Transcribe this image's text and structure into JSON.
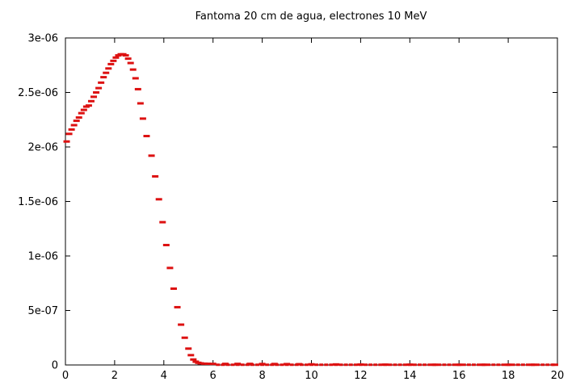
{
  "chart_data": {
    "type": "scatter",
    "title": "Fantoma 20 cm de agua, electrones 10 MeV",
    "xlabel": "",
    "ylabel": "",
    "xlim": [
      0,
      20
    ],
    "ylim": [
      0,
      3e-06
    ],
    "x_ticks": [
      0,
      2,
      4,
      6,
      8,
      10,
      12,
      14,
      16,
      18,
      20
    ],
    "x_tick_labels": [
      "0",
      "2",
      "4",
      "6",
      "8",
      "10",
      "12",
      "14",
      "16",
      "18",
      "20"
    ],
    "y_ticks": [
      0,
      5e-07,
      1e-06,
      1.5e-06,
      2e-06,
      2.5e-06,
      3e-06
    ],
    "y_tick_labels": [
      "0",
      "5e-07",
      "1e-06",
      "1.5e-06",
      "2e-06",
      "2.5e-06",
      "3e-06"
    ],
    "grid": false,
    "marker": "short horizontal dash",
    "colors": {
      "series": "#dd1111",
      "axis": "#000000",
      "background": "#ffffff"
    },
    "series": [
      {
        "x": [
          0.05,
          0.15,
          0.25,
          0.35,
          0.45,
          0.55,
          0.65,
          0.75,
          0.85,
          0.95,
          1.05,
          1.15,
          1.25,
          1.35,
          1.45,
          1.55,
          1.65,
          1.75,
          1.85,
          1.95,
          2.05,
          2.15,
          2.25,
          2.35,
          2.45,
          2.55,
          2.65,
          2.75,
          2.85,
          2.95,
          3.05,
          3.15,
          3.3,
          3.5,
          3.65,
          3.8,
          3.95,
          4.1,
          4.25,
          4.4,
          4.55,
          4.7,
          4.85,
          5.0,
          5.1,
          5.2,
          5.3,
          5.4,
          5.5,
          5.65,
          5.8,
          6.0,
          6.5,
          7.0,
          7.5,
          8.0,
          8.5,
          9.0,
          9.5,
          10.0,
          11.0,
          12.0,
          13.0,
          14.0,
          15.0,
          16.0,
          17.0,
          18.0,
          19.0,
          19.9
        ],
        "y": [
          2.05e-06,
          2.12e-06,
          2.16e-06,
          2.2e-06,
          2.24e-06,
          2.27e-06,
          2.31e-06,
          2.34e-06,
          2.37e-06,
          2.38e-06,
          2.42e-06,
          2.46e-06,
          2.5e-06,
          2.54e-06,
          2.59e-06,
          2.64e-06,
          2.68e-06,
          2.72e-06,
          2.76e-06,
          2.79e-06,
          2.82e-06,
          2.84e-06,
          2.85e-06,
          2.85e-06,
          2.84e-06,
          2.81e-06,
          2.77e-06,
          2.71e-06,
          2.63e-06,
          2.53e-06,
          2.4e-06,
          2.26e-06,
          2.1e-06,
          1.92e-06,
          1.73e-06,
          1.52e-06,
          1.31e-06,
          1.1e-06,
          8.9e-07,
          7e-07,
          5.3e-07,
          3.7e-07,
          2.5e-07,
          1.5e-07,
          9e-08,
          5e-08,
          3e-08,
          2e-08,
          1.5e-08,
          1.2e-08,
          1.1e-08,
          1e-08,
          1e-08,
          1e-08,
          1e-08,
          9e-09,
          9e-09,
          8e-09,
          7e-09,
          6e-09,
          5e-09,
          4e-09,
          3e-09,
          3e-09,
          2e-09,
          2e-09,
          2e-09,
          2e-09,
          2e-09,
          2e-09
        ]
      }
    ]
  }
}
